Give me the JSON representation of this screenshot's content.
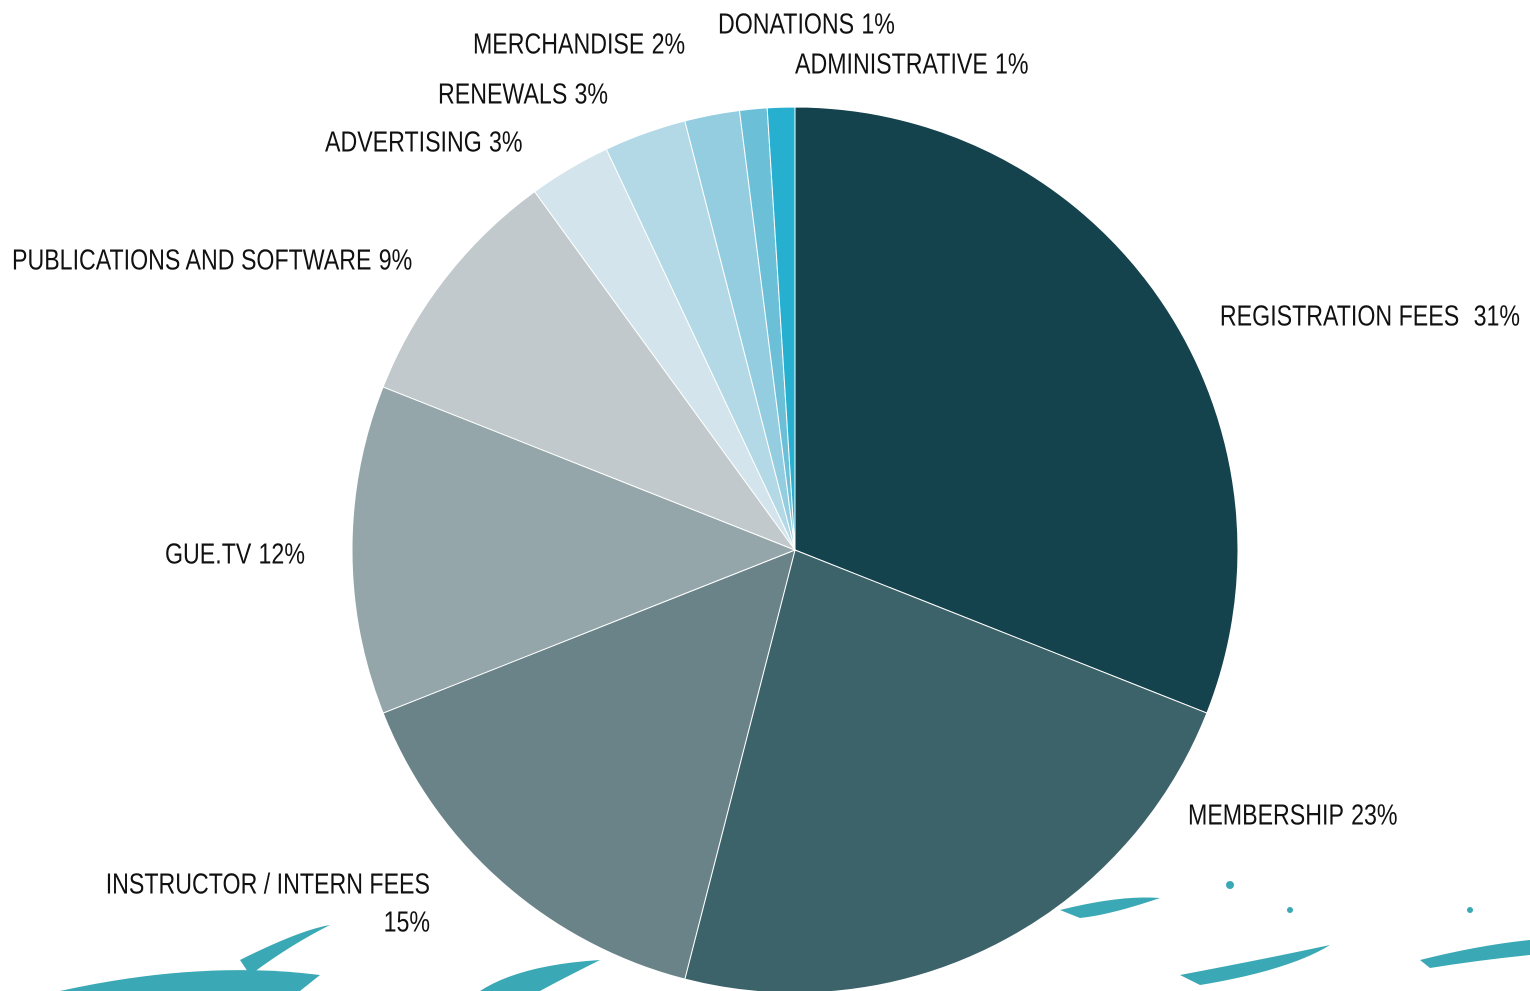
{
  "chart_data": {
    "type": "pie",
    "categories": [
      "REGISTRATION FEES",
      "MEMBERSHIP",
      "INSTRUCTOR / INTERN FEES",
      "GUE.TV",
      "PUBLICATIONS AND SOFTWARE",
      "ADVERTISING",
      "RENEWALS",
      "MERCHANDISE",
      "DONATIONS",
      "ADMINISTRATIVE"
    ],
    "values": [
      31,
      23,
      15,
      12,
      9,
      3,
      3,
      2,
      1,
      1
    ],
    "value_labels": [
      "31%",
      "23%",
      "15%",
      "12%",
      "9%",
      "3%",
      "3%",
      "2%",
      "1%",
      "1%"
    ],
    "colors": [
      "#15434d",
      "#3d636a",
      "#6a8388",
      "#94a6aa",
      "#c1c9cc",
      "#d3e4ec",
      "#b4d9e6",
      "#94cde0",
      "#6bbfd6",
      "#26afcf"
    ]
  }
}
